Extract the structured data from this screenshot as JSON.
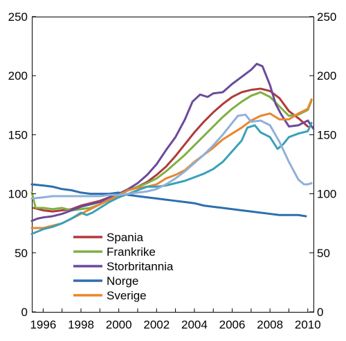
{
  "chart_data": {
    "type": "line",
    "title": "",
    "xlabel": "",
    "ylabel": "",
    "xlim": [
      1995.4,
      2010.3
    ],
    "ylim": [
      0,
      250
    ],
    "y_ticks": [
      0,
      50,
      100,
      150,
      200,
      250
    ],
    "y_tick_labels": [
      "0",
      "50",
      "100",
      "150",
      "200",
      "250"
    ],
    "x_ticks": [
      1996,
      1998,
      2000,
      2002,
      2004,
      2006,
      2008,
      2010
    ],
    "x_tick_labels": [
      "1996",
      "1998",
      "2000",
      "2002",
      "2004",
      "2006",
      "2008",
      "2010"
    ],
    "grid": false,
    "dual_y_axis": true,
    "legend_position": "lower-center",
    "legend_shown": [
      "Spania",
      "Frankrike",
      "Storbritannia",
      "Norge",
      "Sverige"
    ],
    "series": [
      {
        "name": "Spania",
        "color": "#b03a3a",
        "x": [
          1995.5,
          1996.0,
          1996.5,
          1997.0,
          1997.5,
          1998.0,
          1998.5,
          1999.0,
          1999.5,
          2000.0,
          2000.5,
          2001.0,
          2001.5,
          2002.0,
          2002.5,
          2003.0,
          2003.5,
          2004.0,
          2004.5,
          2005.0,
          2005.5,
          2006.0,
          2006.5,
          2007.0,
          2007.5,
          2008.0,
          2008.5,
          2009.0,
          2009.5,
          2010.0
        ],
        "y": [
          88,
          86,
          85,
          86,
          87,
          90,
          92,
          94,
          97,
          100,
          103,
          106,
          110,
          116,
          123,
          132,
          142,
          152,
          161,
          169,
          176,
          182,
          186,
          188,
          189,
          187,
          181,
          170,
          164,
          157
        ]
      },
      {
        "name": "Frankrike",
        "color": "#7fb043",
        "x": [
          1995.4,
          1995.6,
          1996.0,
          1996.5,
          1997.0,
          1997.5,
          1998.0,
          1998.5,
          1999.0,
          1999.5,
          2000.0,
          2000.5,
          2001.0,
          2001.5,
          2002.0,
          2002.5,
          2003.0,
          2003.5,
          2004.0,
          2004.5,
          2005.0,
          2005.5,
          2006.0,
          2006.5,
          2007.0,
          2007.5,
          2008.0,
          2008.5,
          2009.0,
          2009.5,
          2010.0,
          2010.2
        ],
        "y": [
          101,
          88,
          88,
          87,
          88,
          86,
          87,
          88,
          91,
          95,
          99,
          103,
          106,
          109,
          113,
          119,
          126,
          133,
          141,
          149,
          157,
          165,
          172,
          178,
          183,
          186,
          182,
          174,
          166,
          167,
          171,
          179
        ]
      },
      {
        "name": "Storbritannia",
        "color": "#6a4a9c",
        "x": [
          1995.4,
          1995.7,
          1996.0,
          1996.5,
          1997.0,
          1997.5,
          1998.0,
          1998.5,
          1999.0,
          1999.5,
          2000.0,
          2000.5,
          2001.0,
          2001.5,
          2002.0,
          2002.5,
          2003.0,
          2003.5,
          2003.9,
          2004.3,
          2004.7,
          2005.0,
          2005.5,
          2006.0,
          2006.5,
          2007.0,
          2007.3,
          2007.6,
          2008.0,
          2008.3,
          2008.6,
          2009.0,
          2009.5,
          2010.0,
          2010.3
        ],
        "y": [
          77,
          79,
          80,
          81,
          83,
          86,
          89,
          91,
          93,
          97,
          100,
          104,
          109,
          116,
          125,
          137,
          148,
          163,
          178,
          184,
          182,
          185,
          186,
          193,
          199,
          205,
          210,
          208,
          192,
          176,
          167,
          157,
          158,
          162,
          155
        ]
      },
      {
        "name": "Norge",
        "color": "#2f6ead",
        "x": [
          1995.4,
          1996.0,
          1996.5,
          1997.0,
          1997.5,
          1998.0,
          1998.5,
          1999.0,
          1999.5,
          2000.0,
          2000.5,
          2001.0,
          2001.5,
          2002.0,
          2002.5,
          2003.0,
          2003.5,
          2004.0,
          2004.5,
          2005.0,
          2005.5,
          2006.0,
          2006.5,
          2007.0,
          2007.5,
          2008.0,
          2008.5,
          2009.0,
          2009.5,
          2009.9
        ],
        "y": [
          108,
          107,
          106,
          104,
          103,
          101,
          100,
          100,
          100,
          101,
          99,
          98,
          97,
          96,
          95,
          94,
          93,
          92,
          90,
          89,
          88,
          87,
          86,
          85,
          84,
          83,
          82,
          82,
          82,
          81
        ]
      },
      {
        "name": "Sverige",
        "color": "#e8862e",
        "x": [
          1995.4,
          1996.0,
          1996.5,
          1997.0,
          1997.5,
          1998.0,
          1998.5,
          1999.0,
          1999.5,
          2000.0,
          2000.5,
          2001.0,
          2001.5,
          2002.0,
          2002.5,
          2003.0,
          2003.5,
          2004.0,
          2004.5,
          2005.0,
          2005.5,
          2006.0,
          2006.5,
          2007.0,
          2007.5,
          2008.0,
          2008.5,
          2009.0,
          2009.5,
          2010.0,
          2010.2
        ],
        "y": [
          71,
          71,
          73,
          75,
          79,
          83,
          87,
          91,
          95,
          99,
          103,
          105,
          106,
          108,
          113,
          116,
          120,
          127,
          133,
          139,
          146,
          151,
          156,
          162,
          166,
          168,
          163,
          163,
          168,
          172,
          180
        ]
      },
      {
        "name": "",
        "color": "#3aa0b8",
        "x": [
          1995.4,
          1996.0,
          1996.5,
          1997.0,
          1997.5,
          1998.0,
          1998.3,
          1998.6,
          1999.0,
          1999.5,
          2000.0,
          2000.5,
          2001.0,
          2001.5,
          2002.0,
          2002.5,
          2003.0,
          2003.5,
          2004.0,
          2004.5,
          2005.0,
          2005.5,
          2006.0,
          2006.5,
          2006.8,
          2007.2,
          2007.5,
          2008.0,
          2008.4,
          2008.7,
          2009.0,
          2009.5,
          2010.0,
          2010.2
        ],
        "y": [
          66,
          70,
          72,
          75,
          79,
          84,
          82,
          84,
          88,
          93,
          97,
          100,
          103,
          106,
          106,
          107,
          109,
          111,
          114,
          117,
          121,
          127,
          136,
          145,
          156,
          158,
          152,
          148,
          138,
          142,
          148,
          151,
          153,
          160
        ]
      },
      {
        "name": "",
        "color": "#8fb0d9",
        "x": [
          1995.4,
          1996.0,
          1996.5,
          1997.0,
          1997.5,
          1998.0,
          1998.5,
          1999.0,
          1999.5,
          2000.0,
          2000.5,
          2001.0,
          2001.5,
          2002.0,
          2002.5,
          2003.0,
          2003.5,
          2004.0,
          2004.5,
          2005.0,
          2005.5,
          2006.0,
          2006.3,
          2006.7,
          2007.0,
          2007.5,
          2008.0,
          2008.5,
          2009.0,
          2009.5,
          2009.8,
          2010.0,
          2010.2
        ],
        "y": [
          96,
          97,
          98,
          98,
          98,
          98,
          98,
          98,
          99,
          99,
          100,
          101,
          102,
          104,
          108,
          113,
          119,
          126,
          133,
          141,
          150,
          160,
          166,
          167,
          161,
          162,
          158,
          144,
          127,
          112,
          108,
          108,
          109
        ]
      }
    ]
  }
}
